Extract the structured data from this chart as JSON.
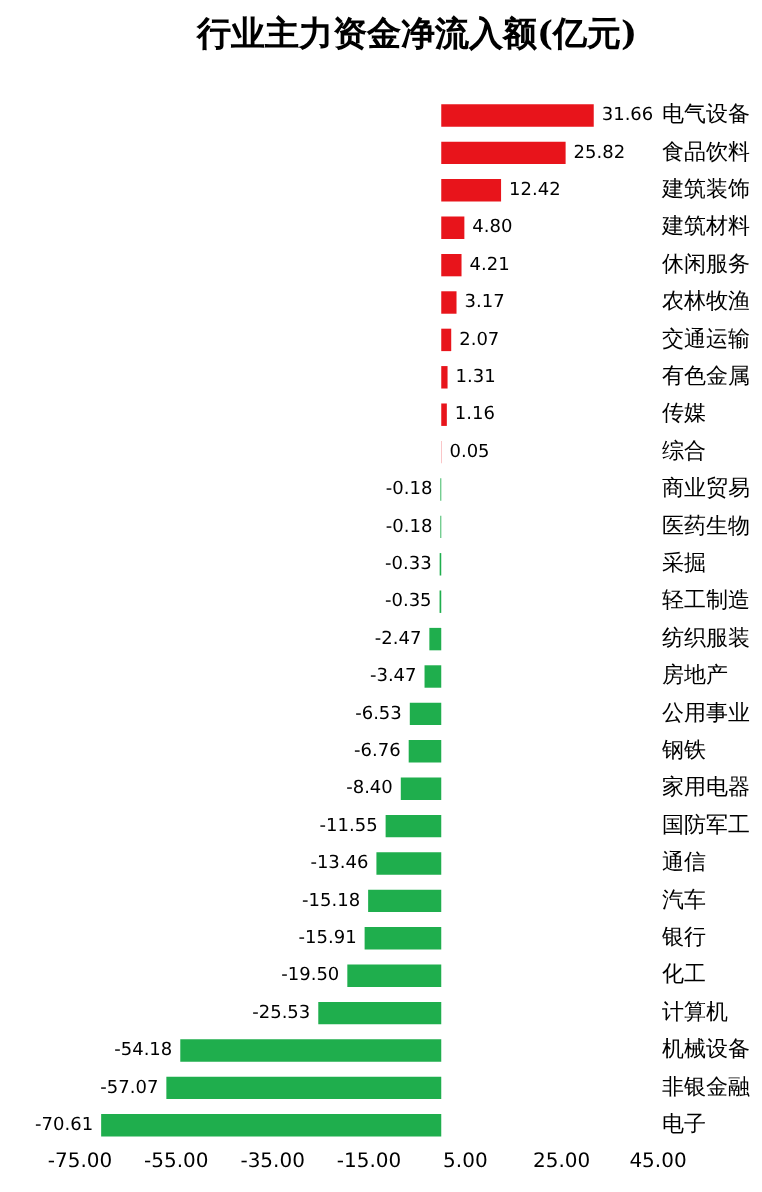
{
  "chart_data": {
    "type": "bar",
    "orientation": "horizontal",
    "title": "行业主力资金净流入额(亿元)",
    "categories": [
      "电气设备",
      "食品饮料",
      "建筑装饰",
      "建筑材料",
      "休闲服务",
      "农林牧渔",
      "交通运输",
      "有色金属",
      "传媒",
      "综合",
      "商业贸易",
      "医药生物",
      "采掘",
      "轻工制造",
      "纺织服装",
      "房地产",
      "公用事业",
      "钢铁",
      "家用电器",
      "国防军工",
      "通信",
      "汽车",
      "银行",
      "化工",
      "计算机",
      "机械设备",
      "非银金融",
      "电子"
    ],
    "values": [
      31.66,
      25.82,
      12.42,
      4.8,
      4.21,
      3.17,
      2.07,
      1.31,
      1.16,
      0.05,
      -0.18,
      -0.18,
      -0.33,
      -0.35,
      -2.47,
      -3.47,
      -6.53,
      -6.76,
      -8.4,
      -11.55,
      -13.46,
      -15.18,
      -15.91,
      -19.5,
      -25.53,
      -54.18,
      -57.07,
      -70.61
    ],
    "value_labels": [
      "31.66",
      "25.82",
      "12.42",
      "4.80",
      "4.21",
      "3.17",
      "2.07",
      "1.31",
      "1.16",
      "0.05",
      "-0.18",
      "-0.18",
      "-0.33",
      "-0.35",
      "-2.47",
      "-3.47",
      "-6.53",
      "-6.76",
      "-8.40",
      "-11.55",
      "-13.46",
      "-15.18",
      "-15.91",
      "-19.50",
      "-25.53",
      "-54.18",
      "-57.07",
      "-70.61"
    ],
    "colors": [
      "#e8141b",
      "#e8141b",
      "#e8141b",
      "#e8141b",
      "#e8141b",
      "#e8141b",
      "#e8141b",
      "#e8141b",
      "#e8141b",
      "#e8141b",
      "#1fae4d",
      "#1fae4d",
      "#1fae4d",
      "#1fae4d",
      "#1fae4d",
      "#1fae4d",
      "#1fae4d",
      "#1fae4d",
      "#1fae4d",
      "#1fae4d",
      "#1fae4d",
      "#1fae4d",
      "#1fae4d",
      "#1fae4d",
      "#1fae4d",
      "#1fae4d",
      "#1fae4d",
      "#1fae4d"
    ],
    "xlim": [
      -75,
      45
    ],
    "xticks": [
      {
        "value": -75,
        "label": "-75.00"
      },
      {
        "value": -55,
        "label": "-55.00"
      },
      {
        "value": -35,
        "label": "-35.00"
      },
      {
        "value": -15,
        "label": "-15.00"
      },
      {
        "value": 5,
        "label": "5.00"
      },
      {
        "value": 25,
        "label": "25.00"
      },
      {
        "value": 45,
        "label": "45.00"
      }
    ],
    "grid": false,
    "legend": false
  }
}
